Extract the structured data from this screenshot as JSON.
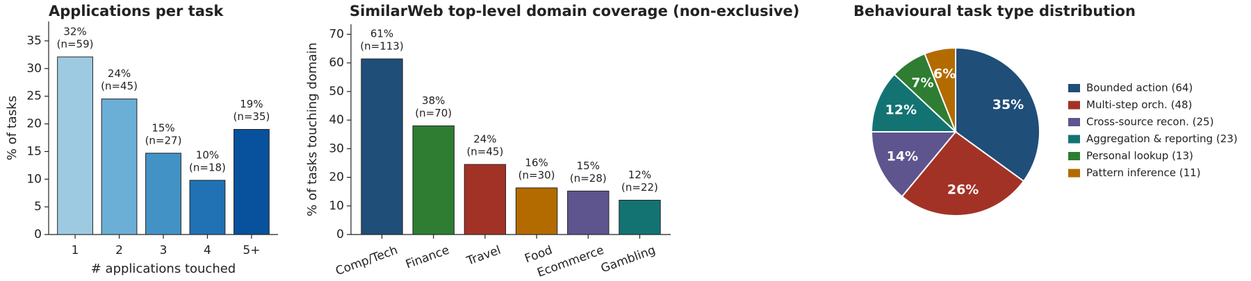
{
  "chart_data": [
    {
      "type": "bar",
      "title": "Applications per task",
      "xlabel": "# applications touched",
      "ylabel": "% of tasks",
      "categories": [
        "1",
        "2",
        "3",
        "4",
        "5+"
      ],
      "values": [
        32.1,
        24.5,
        14.7,
        9.8,
        19.0
      ],
      "value_labels": [
        "32%",
        "24%",
        "15%",
        "10%",
        "19%"
      ],
      "n_labels": [
        "(n=59)",
        "(n=45)",
        "(n=27)",
        "(n=18)",
        "(n=35)"
      ],
      "colors": [
        "#9ecae1",
        "#6baed6",
        "#4292c6",
        "#2171b5",
        "#08519c"
      ],
      "ylim": [
        0,
        38.5
      ],
      "yticks": [
        0,
        5,
        10,
        15,
        20,
        25,
        30,
        35
      ]
    },
    {
      "type": "bar",
      "title": "SimilarWeb top-level domain coverage (non-exclusive)",
      "ylabel": "% of tasks touching domain",
      "categories": [
        "Comp/Tech",
        "Finance",
        "Travel",
        "Food",
        "Ecommerce",
        "Gambling"
      ],
      "values": [
        61.4,
        38.0,
        24.5,
        16.3,
        15.2,
        12.0
      ],
      "value_labels": [
        "61%",
        "38%",
        "24%",
        "16%",
        "15%",
        "12%"
      ],
      "n_labels": [
        "(n=113)",
        "(n=70)",
        "(n=45)",
        "(n=30)",
        "(n=28)",
        "(n=22)"
      ],
      "colors": [
        "#1f4e79",
        "#2e7d32",
        "#a33226",
        "#b36b00",
        "#5e548e",
        "#137373"
      ],
      "ylim": [
        0,
        73.5
      ],
      "yticks": [
        0,
        10,
        20,
        30,
        40,
        50,
        60,
        70
      ]
    },
    {
      "type": "pie",
      "title": "Behavioural task type distribution",
      "labels": [
        "Bounded action  (64)",
        "Multi-step orch.  (48)",
        "Cross-source recon.  (25)",
        "Aggregation & reporting  (23)",
        "Personal lookup  (13)",
        "Pattern inference  (11)"
      ],
      "values": [
        35,
        26,
        14,
        12,
        7,
        6
      ],
      "value_labels": [
        "35%",
        "26%",
        "14%",
        "12%",
        "7%",
        "6%"
      ],
      "colors": [
        "#1f4e79",
        "#a33226",
        "#5e548e",
        "#137373",
        "#2e7d32",
        "#b36b00"
      ]
    }
  ]
}
